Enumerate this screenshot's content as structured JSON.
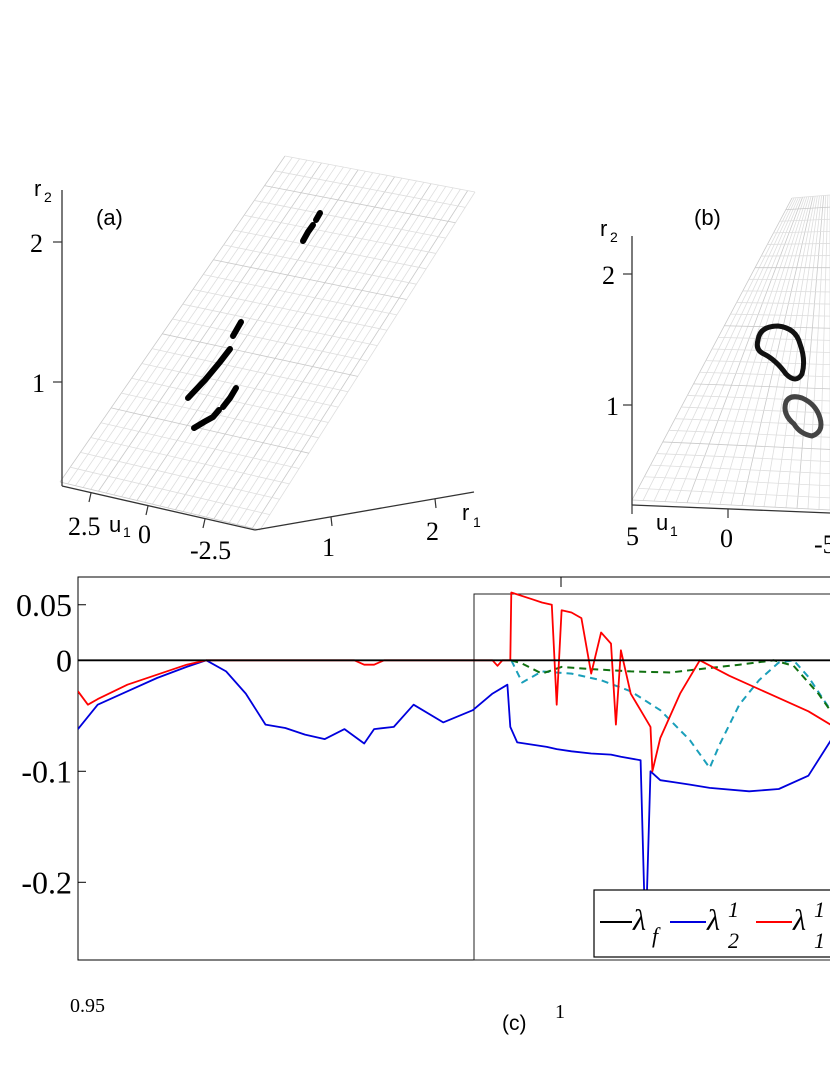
{
  "chart_data": [
    {
      "type": "scatter",
      "panel_label": "(a)",
      "view": "3d",
      "axis_labels": {
        "z": "r",
        "z_sub": "2",
        "u": "u",
        "u_sub": "1",
        "r1": "r",
        "r1_sub": "1"
      },
      "z_ticks": [
        "2",
        "1"
      ],
      "u_ticks": [
        "2.5",
        "0",
        "-2.5"
      ],
      "r1_ticks": [
        "1",
        "2"
      ],
      "surface_color": "#cfcfcf",
      "curve_color": "#000000",
      "curves": [
        [
          [
            1.6,
            2.0
          ],
          [
            1.66,
            2.08
          ]
        ],
        [
          [
            0.96,
            1.0
          ],
          [
            1.24,
            1.3
          ]
        ],
        [
          [
            0.98,
            0.74
          ],
          [
            1.1,
            0.84
          ],
          [
            1.14,
            0.9
          ]
        ]
      ]
    },
    {
      "type": "scatter",
      "panel_label": "(b)",
      "view": "3d",
      "axis_labels": {
        "z": "r",
        "z_sub": "2",
        "u": "u",
        "u_sub": "1"
      },
      "z_ticks": [
        "2",
        "1"
      ],
      "u_ticks": [
        "5",
        "0",
        "-5"
      ],
      "surface_color": "#cfcfcf",
      "curve_color": "#000000",
      "curves": []
    },
    {
      "type": "line",
      "panel_label": "(c)",
      "xlim": [
        0.95,
        1.027
      ],
      "ylim": [
        -0.27,
        0.075
      ],
      "x_ticks": [
        "0.95",
        "1"
      ],
      "y_ticks": [
        "0.05",
        "0",
        "-0.1",
        "-0.2"
      ],
      "grid": false,
      "legend_position": "bottom-right",
      "series": [
        {
          "name": "λf",
          "legend_symbol": "λ",
          "legend_sub": "f",
          "legend_sup": "",
          "color": "#000000",
          "style": "solid",
          "points": [
            [
              0.95,
              0.0
            ],
            [
              1.027,
              0.0
            ]
          ]
        },
        {
          "name": "λ12",
          "legend_symbol": "λ",
          "legend_sub": "2",
          "legend_sup": "1",
          "color": "#0000dd",
          "style": "solid",
          "points": [
            [
              0.95,
              -0.062
            ],
            [
              0.952,
              -0.04
            ],
            [
              0.955,
              -0.028
            ],
            [
              0.958,
              -0.016
            ],
            [
              0.961,
              -0.006
            ],
            [
              0.963,
              0.0
            ],
            [
              0.965,
              -0.01
            ],
            [
              0.967,
              -0.03
            ],
            [
              0.969,
              -0.058
            ],
            [
              0.971,
              -0.061
            ],
            [
              0.973,
              -0.067
            ],
            [
              0.975,
              -0.071
            ],
            [
              0.977,
              -0.062
            ],
            [
              0.979,
              -0.075
            ],
            [
              0.98,
              -0.062
            ],
            [
              0.982,
              -0.06
            ],
            [
              0.984,
              -0.04
            ],
            [
              0.987,
              -0.056
            ],
            [
              0.99,
              -0.045
            ],
            [
              0.992,
              -0.03
            ],
            [
              0.9935,
              -0.022
            ],
            [
              0.9938,
              -0.06
            ],
            [
              0.9945,
              -0.074
            ],
            [
              0.996,
              -0.076
            ],
            [
              0.9975,
              -0.078
            ],
            [
              0.9985,
              -0.08
            ],
            [
              1.0,
              -0.082
            ],
            [
              1.002,
              -0.084
            ],
            [
              1.004,
              -0.085
            ],
            [
              1.005,
              -0.087
            ],
            [
              1.007,
              -0.09
            ],
            [
              1.0075,
              -0.254
            ],
            [
              1.008,
              -0.1
            ],
            [
              1.009,
              -0.108
            ],
            [
              1.0105,
              -0.11
            ],
            [
              1.012,
              -0.112
            ],
            [
              1.014,
              -0.115
            ],
            [
              1.018,
              -0.118
            ],
            [
              1.021,
              -0.116
            ],
            [
              1.024,
              -0.104
            ],
            [
              1.027,
              -0.062
            ]
          ]
        },
        {
          "name": "λ11",
          "legend_symbol": "λ",
          "legend_sub": "1",
          "legend_sup": "1",
          "color": "#ff0000",
          "style": "solid",
          "points": [
            [
              0.95,
              -0.028
            ],
            [
              0.951,
              -0.04
            ],
            [
              0.952,
              -0.035
            ],
            [
              0.955,
              -0.022
            ],
            [
              0.958,
              -0.013
            ],
            [
              0.961,
              -0.004
            ],
            [
              0.963,
              0.0
            ],
            [
              0.978,
              0.0
            ],
            [
              0.979,
              -0.004
            ],
            [
              0.98,
              -0.004
            ],
            [
              0.981,
              0.0
            ],
            [
              0.992,
              0.0
            ],
            [
              0.9925,
              -0.005
            ],
            [
              0.993,
              0.0
            ],
            [
              0.9938,
              0.0
            ],
            [
              0.9939,
              0.061
            ],
            [
              0.996,
              0.055
            ],
            [
              0.997,
              0.052
            ],
            [
              0.998,
              0.05
            ],
            [
              0.9985,
              -0.04
            ],
            [
              0.999,
              0.045
            ],
            [
              1.0,
              0.043
            ],
            [
              1.001,
              0.038
            ],
            [
              1.002,
              -0.012
            ],
            [
              1.003,
              0.025
            ],
            [
              1.004,
              0.015
            ],
            [
              1.0045,
              -0.058
            ],
            [
              1.005,
              0.009
            ],
            [
              1.006,
              -0.03
            ],
            [
              1.007,
              -0.045
            ],
            [
              1.008,
              -0.06
            ],
            [
              1.0082,
              -0.1
            ],
            [
              1.009,
              -0.07
            ],
            [
              1.011,
              -0.03
            ],
            [
              1.013,
              0.0
            ],
            [
              1.016,
              -0.014
            ],
            [
              1.02,
              -0.03
            ],
            [
              1.024,
              -0.046
            ],
            [
              1.027,
              -0.062
            ]
          ]
        },
        {
          "name": "λ11 (dashed)",
          "color": "#1a9fba",
          "style": "dashed",
          "points": [
            [
              0.9939,
              0.0
            ],
            [
              0.995,
              -0.02
            ],
            [
              0.997,
              -0.01
            ],
            [
              1.0,
              -0.012
            ],
            [
              1.003,
              -0.018
            ],
            [
              1.006,
              -0.028
            ],
            [
              1.009,
              -0.045
            ],
            [
              1.012,
              -0.072
            ],
            [
              1.014,
              -0.097
            ],
            [
              1.015,
              -0.076
            ],
            [
              1.017,
              -0.04
            ],
            [
              1.019,
              -0.018
            ],
            [
              1.021,
              -0.002
            ],
            [
              1.0225,
              0.0
            ],
            [
              1.024,
              -0.015
            ],
            [
              1.027,
              -0.055
            ]
          ]
        },
        {
          "name": "λ11 (green dashed)",
          "color": "#107010",
          "style": "dashed",
          "points": [
            [
              0.9939,
              0.0
            ],
            [
              0.995,
              -0.003
            ],
            [
              0.997,
              -0.012
            ],
            [
              0.999,
              -0.006
            ],
            [
              1.002,
              -0.008
            ],
            [
              1.006,
              -0.01
            ],
            [
              1.01,
              -0.011
            ],
            [
              1.013,
              -0.008
            ],
            [
              1.017,
              -0.004
            ],
            [
              1.0205,
              0.0
            ],
            [
              1.0225,
              -0.005
            ],
            [
              1.025,
              -0.03
            ],
            [
              1.027,
              -0.055
            ]
          ]
        }
      ]
    }
  ]
}
